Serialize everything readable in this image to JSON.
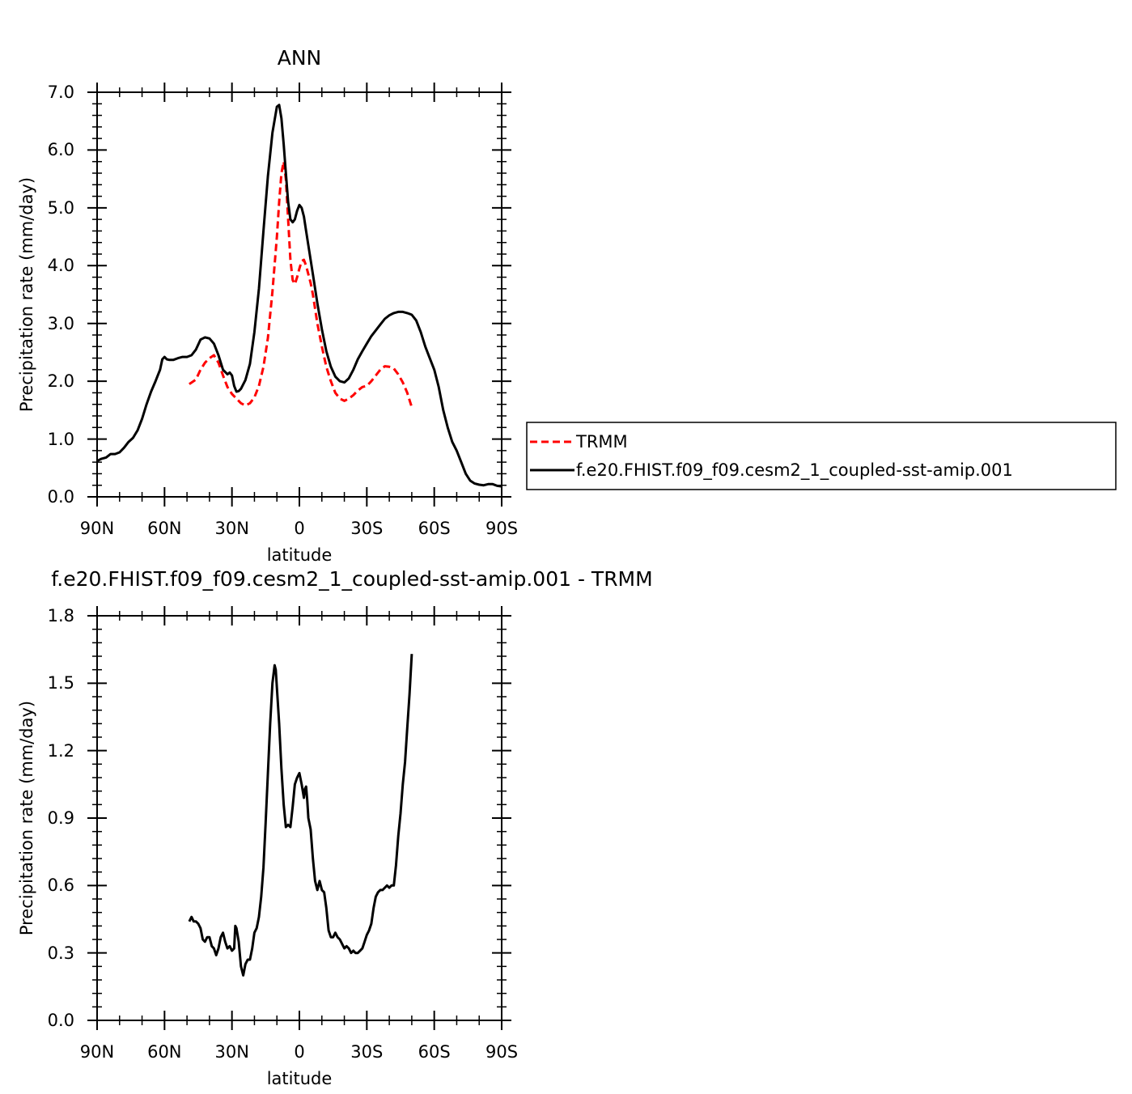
{
  "chart_data": [
    {
      "type": "line",
      "title": "ANN",
      "xlabel": "latitude",
      "ylabel": "Precipitation rate (mm/day)",
      "xlim": [
        90,
        -90
      ],
      "ylim": [
        0,
        7
      ],
      "x_ticks": [
        90,
        60,
        30,
        0,
        -30,
        -60,
        -90
      ],
      "x_tick_labels": [
        "90N",
        "60N",
        "30N",
        "0",
        "30S",
        "60S",
        "90S"
      ],
      "y_ticks": [
        0,
        1,
        2,
        3,
        4,
        5,
        6,
        7
      ],
      "y_tick_labels": [
        "0.0",
        "1.0",
        "2.0",
        "3.0",
        "4.0",
        "5.0",
        "6.0",
        "7.0"
      ],
      "grid": false,
      "legend_position": "right",
      "series": [
        {
          "name": "TRMM",
          "color": "#ff0000",
          "dash": "dashed",
          "x": [
            49,
            46,
            44,
            42,
            40,
            38,
            36,
            34,
            32,
            30,
            28,
            26,
            24,
            22,
            20,
            18,
            16,
            14,
            12,
            10,
            9,
            8,
            7,
            6,
            5,
            4,
            3,
            2,
            1,
            0,
            -1,
            -2,
            -3,
            -4,
            -5,
            -6,
            -8,
            -10,
            -12,
            -14,
            -16,
            -18,
            -20,
            -22,
            -24,
            -26,
            -28,
            -30,
            -32,
            -34,
            -36,
            -38,
            -40,
            -42,
            -44,
            -46,
            -48,
            -50
          ],
          "y": [
            1.95,
            2.03,
            2.2,
            2.32,
            2.4,
            2.45,
            2.32,
            2.1,
            1.9,
            1.78,
            1.7,
            1.62,
            1.58,
            1.62,
            1.72,
            1.92,
            2.25,
            2.75,
            3.55,
            4.5,
            5.1,
            5.6,
            5.8,
            5.5,
            4.8,
            4.1,
            3.75,
            3.68,
            3.8,
            3.95,
            4.08,
            4.1,
            4.0,
            3.85,
            3.7,
            3.5,
            3.0,
            2.6,
            2.25,
            2.0,
            1.8,
            1.7,
            1.66,
            1.7,
            1.76,
            1.84,
            1.9,
            1.92,
            2.0,
            2.1,
            2.2,
            2.26,
            2.25,
            2.22,
            2.12,
            1.98,
            1.8,
            1.55
          ]
        },
        {
          "name": "f.e20.FHIST.f09_f09.cesm2_1_coupled-sst-amip.001",
          "color": "#000000",
          "dash": "solid",
          "x": [
            90,
            88,
            86,
            84,
            82,
            80,
            78,
            76,
            74,
            72,
            70,
            68,
            66,
            64,
            62,
            61,
            60,
            59,
            58,
            56,
            54,
            52,
            50,
            48,
            46,
            44,
            42,
            40,
            38,
            36,
            34,
            32,
            31,
            30,
            29,
            28,
            27,
            26,
            24,
            22,
            20,
            18,
            16,
            14,
            12,
            10,
            9,
            8,
            7,
            6,
            5,
            4,
            3,
            2,
            1,
            0,
            -1,
            -2,
            -3,
            -4,
            -5,
            -6,
            -8,
            -10,
            -12,
            -14,
            -16,
            -18,
            -20,
            -22,
            -24,
            -26,
            -28,
            -30,
            -32,
            -34,
            -36,
            -38,
            -40,
            -42,
            -44,
            -46,
            -48,
            -50,
            -52,
            -54,
            -56,
            -58,
            -60,
            -62,
            -64,
            -66,
            -68,
            -70,
            -72,
            -74,
            -76,
            -78,
            -80,
            -82,
            -84,
            -86,
            -88,
            -90
          ],
          "y": [
            0.62,
            0.66,
            0.68,
            0.74,
            0.74,
            0.77,
            0.85,
            0.95,
            1.02,
            1.15,
            1.35,
            1.6,
            1.82,
            2.0,
            2.2,
            2.38,
            2.42,
            2.38,
            2.37,
            2.37,
            2.4,
            2.42,
            2.42,
            2.45,
            2.55,
            2.72,
            2.76,
            2.74,
            2.65,
            2.45,
            2.2,
            2.12,
            2.15,
            2.1,
            1.92,
            1.82,
            1.83,
            1.87,
            2.02,
            2.3,
            2.85,
            3.6,
            4.6,
            5.55,
            6.3,
            6.75,
            6.78,
            6.55,
            6.1,
            5.6,
            5.1,
            4.8,
            4.75,
            4.8,
            4.95,
            5.05,
            5.0,
            4.85,
            4.6,
            4.35,
            4.1,
            3.85,
            3.35,
            2.9,
            2.52,
            2.25,
            2.08,
            2.0,
            1.98,
            2.05,
            2.2,
            2.38,
            2.52,
            2.65,
            2.78,
            2.88,
            2.98,
            3.08,
            3.14,
            3.18,
            3.2,
            3.2,
            3.18,
            3.15,
            3.05,
            2.85,
            2.6,
            2.4,
            2.2,
            1.9,
            1.5,
            1.2,
            0.95,
            0.8,
            0.6,
            0.4,
            0.28,
            0.23,
            0.21,
            0.2,
            0.22,
            0.22,
            0.19,
            0.18
          ]
        }
      ]
    },
    {
      "type": "line",
      "title": "f.e20.FHIST.f09_f09.cesm2_1_coupled-sst-amip.001 - TRMM",
      "xlabel": "latitude",
      "ylabel": "Precipitation rate (mm/day)",
      "xlim": [
        90,
        -90
      ],
      "ylim": [
        0,
        1.8
      ],
      "x_ticks": [
        90,
        60,
        30,
        0,
        -30,
        -60,
        -90
      ],
      "x_tick_labels": [
        "90N",
        "60N",
        "30N",
        "0",
        "30S",
        "60S",
        "90S"
      ],
      "y_ticks": [
        0,
        0.3,
        0.6,
        0.9,
        1.2,
        1.5,
        1.8
      ],
      "y_tick_labels": [
        "0.0",
        "0.3",
        "0.6",
        "0.9",
        "1.2",
        "1.5",
        "1.8"
      ],
      "grid": false,
      "series": [
        {
          "color": "#000000",
          "dash": "solid",
          "x": [
            49,
            48,
            47,
            46,
            45,
            44,
            43,
            42,
            41,
            40,
            39,
            38,
            37,
            36,
            35,
            34,
            33,
            32,
            31,
            30,
            29,
            28.5,
            28,
            27,
            26,
            25,
            24,
            23,
            22,
            21,
            20,
            19,
            18,
            17,
            16,
            15,
            14,
            13,
            12,
            11,
            10.5,
            10,
            9,
            8,
            7,
            6,
            5,
            4,
            3,
            2,
            1,
            0,
            -1,
            -2,
            -2.5,
            -3,
            -3.5,
            -4,
            -5,
            -6,
            -7,
            -8,
            -9,
            -10,
            -11,
            -12,
            -13,
            -14,
            -15,
            -16,
            -17,
            -18,
            -19,
            -20,
            -21,
            -22,
            -23,
            -24,
            -25,
            -26,
            -27,
            -28,
            -29,
            -30,
            -31,
            -32,
            -33,
            -34,
            -35,
            -36,
            -37,
            -38,
            -39,
            -40,
            -41,
            -42,
            -43,
            -44,
            -45,
            -46,
            -47,
            -48,
            -49,
            -50
          ],
          "y": [
            0.44,
            0.46,
            0.44,
            0.44,
            0.43,
            0.41,
            0.36,
            0.35,
            0.37,
            0.37,
            0.33,
            0.32,
            0.29,
            0.32,
            0.37,
            0.39,
            0.35,
            0.32,
            0.33,
            0.31,
            0.32,
            0.42,
            0.41,
            0.35,
            0.24,
            0.2,
            0.25,
            0.27,
            0.27,
            0.32,
            0.39,
            0.41,
            0.46,
            0.55,
            0.68,
            0.88,
            1.1,
            1.32,
            1.5,
            1.58,
            1.56,
            1.48,
            1.32,
            1.12,
            0.96,
            0.86,
            0.87,
            0.86,
            0.95,
            1.05,
            1.08,
            1.1,
            1.05,
            0.99,
            1.03,
            1.04,
            0.98,
            0.9,
            0.85,
            0.72,
            0.62,
            0.58,
            0.62,
            0.58,
            0.57,
            0.5,
            0.4,
            0.37,
            0.37,
            0.39,
            0.37,
            0.36,
            0.34,
            0.32,
            0.33,
            0.32,
            0.3,
            0.31,
            0.3,
            0.3,
            0.31,
            0.32,
            0.35,
            0.38,
            0.4,
            0.43,
            0.5,
            0.55,
            0.57,
            0.58,
            0.58,
            0.59,
            0.6,
            0.59,
            0.6,
            0.6,
            0.69,
            0.82,
            0.92,
            1.05,
            1.15,
            1.3,
            1.45,
            1.63
          ]
        }
      ]
    }
  ]
}
